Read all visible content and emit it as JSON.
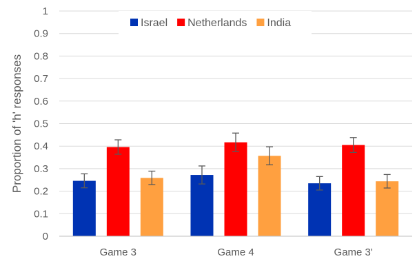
{
  "chart_data": {
    "type": "bar",
    "title": "",
    "xlabel": "",
    "ylabel": "Proportion of 'h' responses",
    "ylim": [
      0,
      1
    ],
    "yticks": [
      "0",
      "0.1",
      "0.2",
      "0.3",
      "0.4",
      "0.5",
      "0.6",
      "0.7",
      "0.8",
      "0.9",
      "1"
    ],
    "categories": [
      "Game 3",
      "Game 4",
      "Game 3'"
    ],
    "grid": true,
    "legend_position": "top-center",
    "series": [
      {
        "name": "Israel",
        "color": "#0033b3",
        "values": [
          0.246,
          0.272,
          0.235
        ],
        "errors": [
          0.031,
          0.04,
          0.03
        ]
      },
      {
        "name": "Netherlands",
        "color": "#ff0000",
        "values": [
          0.396,
          0.417,
          0.405
        ],
        "errors": [
          0.032,
          0.041,
          0.033
        ]
      },
      {
        "name": "India",
        "color": "#ffa040",
        "values": [
          0.259,
          0.357,
          0.244
        ],
        "errors": [
          0.03,
          0.04,
          0.03
        ]
      }
    ]
  }
}
